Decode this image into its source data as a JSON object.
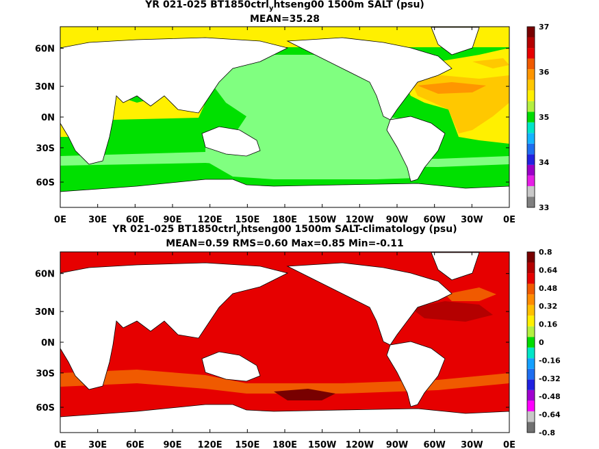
{
  "panel1": {
    "title_pre": "YR 021-025 BT1850ctrl",
    "title_sub": "y",
    "title_post": "htseng00 1500m SALT (psu)",
    "stats": "MEAN=35.28",
    "colorbar": {
      "colors": [
        "#808080",
        "#c8c8c8",
        "#e61ee6",
        "#9b00c8",
        "#2222e0",
        "#1e6ef0",
        "#14b4ff",
        "#00e6c8",
        "#00dc00",
        "#b4f040",
        "#fff000",
        "#ffc800",
        "#ff9600",
        "#f05a00",
        "#e60000",
        "#b40000",
        "#780000"
      ],
      "labels": [
        "33",
        "34",
        "35",
        "36",
        "37"
      ]
    }
  },
  "panel2": {
    "title_pre": "YR 021-025 BT1850ctrl",
    "title_sub": "y",
    "title_post": "htseng00 1500m SALT-climatology (psu)",
    "stats": "MEAN=0.59   RMS=0.60   Max=0.85   Min=-0.11",
    "colorbar": {
      "colors": [
        "#707070",
        "#c8c8c8",
        "#ff00ff",
        "#a000d0",
        "#2020e0",
        "#1e6ef0",
        "#14a0ff",
        "#00e6c8",
        "#00dc00",
        "#b4f040",
        "#fff000",
        "#ffc000",
        "#ff8c00",
        "#f05a00",
        "#e60000",
        "#b40000",
        "#780000"
      ],
      "labels": [
        "0.8",
        "0.64",
        "0.48",
        "0.32",
        "0.16",
        "0",
        "-0.16",
        "-0.32",
        "-0.48",
        "-0.64",
        "-0.8"
      ]
    }
  },
  "map": {
    "lat_labels": [
      "60N",
      "30N",
      "0N",
      "30S",
      "60S"
    ],
    "lon_labels": [
      "0E",
      "30E",
      "60E",
      "90E",
      "120E",
      "150E",
      "180E",
      "150W",
      "120W",
      "90W",
      "60W",
      "30W",
      "0E"
    ]
  }
}
